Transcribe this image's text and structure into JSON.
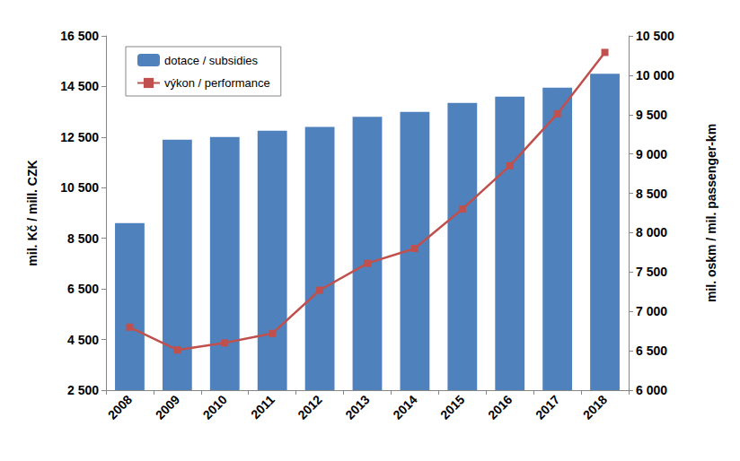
{
  "chart_data": {
    "type": "bar",
    "categories": [
      "2008",
      "2009",
      "2010",
      "2011",
      "2012",
      "2013",
      "2014",
      "2015",
      "2016",
      "2017",
      "2018"
    ],
    "series": [
      {
        "name": "dotace / subsidies",
        "type": "bar",
        "color": "#4f81bd",
        "values": [
          9100,
          12400,
          12500,
          12750,
          12900,
          13300,
          13500,
          13850,
          14100,
          14450,
          15000
        ]
      },
      {
        "name": "výkon / performance",
        "type": "line",
        "axis": "y2",
        "color": "#c0504d",
        "marker": "square",
        "line_style": "solid",
        "values": [
          6800,
          6510,
          6600,
          6720,
          7270,
          7610,
          7800,
          8300,
          8850,
          9510,
          10290
        ]
      }
    ],
    "ylabel": "mil. Kč / mill. CZK",
    "y2label": "mil. oskm / mil. passenger-km",
    "ylim": [
      2500,
      16500
    ],
    "yticks": [
      {
        "value": 2500,
        "label": "2 500"
      },
      {
        "value": 4500,
        "label": "4 500"
      },
      {
        "value": 6500,
        "label": "6 500"
      },
      {
        "value": 8500,
        "label": "8 500"
      },
      {
        "value": 10500,
        "label": "10 500"
      },
      {
        "value": 12500,
        "label": "12 500"
      },
      {
        "value": 14500,
        "label": "14 500"
      },
      {
        "value": 16500,
        "label": "16 500"
      }
    ],
    "y2lim": [
      6000,
      10500
    ],
    "y2ticks": [
      {
        "value": 6000,
        "label": "6 000"
      },
      {
        "value": 6500,
        "label": "6 500"
      },
      {
        "value": 7000,
        "label": "7 000"
      },
      {
        "value": 7500,
        "label": "7 500"
      },
      {
        "value": 8000,
        "label": "8 000"
      },
      {
        "value": 8500,
        "label": "8 500"
      },
      {
        "value": 9000,
        "label": "9 000"
      },
      {
        "value": 9500,
        "label": "9 500"
      },
      {
        "value": 10000,
        "label": "10 000"
      },
      {
        "value": 10500,
        "label": "10 500"
      }
    ],
    "grid": false,
    "legend": "upper left"
  }
}
